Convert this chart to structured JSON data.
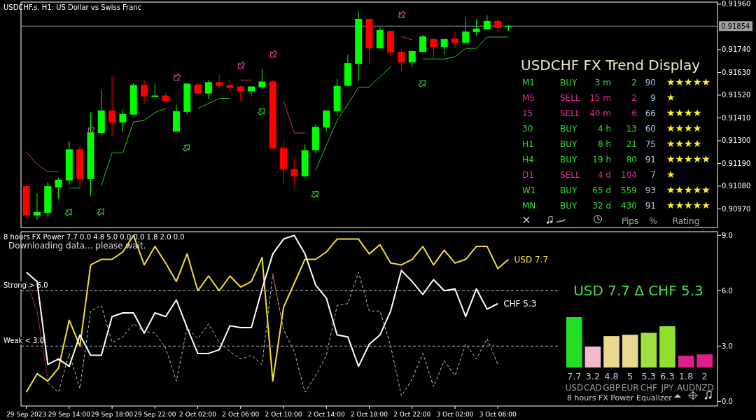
{
  "chart_data": [
    {
      "type": "candlestick",
      "title": "USDCHF.s, H1:  US Dollar vs Swiss Franc",
      "categories": [
        null,
        null,
        null,
        null,
        null,
        null,
        null,
        null,
        null,
        null,
        null,
        null,
        null,
        null,
        null,
        null,
        null,
        null,
        null,
        null,
        null,
        null,
        null,
        null,
        null,
        null,
        null,
        null,
        null,
        null,
        null,
        null,
        null,
        null,
        null,
        null,
        null,
        null,
        null,
        null,
        null,
        null,
        null,
        null,
        null,
        null,
        null,
        null,
        null,
        null,
        null,
        null,
        null,
        null,
        null,
        null,
        null,
        null,
        null,
        null,
        null,
        null,
        null,
        null,
        null
      ],
      "ohlc": [
        [
          0.9108,
          0.91084,
          0.90927,
          0.90938
        ],
        [
          0.90938,
          0.91046,
          0.90917,
          0.90955
        ],
        [
          0.90951,
          0.91098,
          0.90931,
          0.9108
        ],
        [
          0.91074,
          0.91121,
          0.91019,
          0.91111
        ],
        [
          0.91108,
          0.91299,
          0.91087,
          0.91258
        ],
        [
          0.91258,
          0.91275,
          0.91067,
          0.91114
        ],
        [
          0.91114,
          0.91436,
          0.91033,
          0.9134
        ],
        [
          0.91337,
          0.91545,
          0.91334,
          0.91446
        ],
        [
          0.91446,
          0.91617,
          0.9132,
          0.91388
        ],
        [
          0.91388,
          0.9145,
          0.9134,
          0.91429
        ],
        [
          0.91426,
          0.91576,
          0.91426,
          0.91569
        ],
        [
          0.91569,
          0.91593,
          0.91477,
          0.91514
        ],
        [
          0.91511,
          0.91576,
          0.91511,
          0.91518
        ],
        [
          0.91518,
          0.91531,
          0.9149,
          0.9149
        ],
        [
          0.91344,
          0.91473,
          0.91344,
          0.91443
        ],
        [
          0.91439,
          0.91576,
          0.91426,
          0.91576
        ],
        [
          0.91572,
          0.91583,
          0.91521,
          0.91528
        ],
        [
          0.91528,
          0.91593,
          0.91501,
          0.91583
        ],
        [
          0.91583,
          0.91617,
          0.91552,
          0.91565
        ],
        [
          0.91569,
          0.91593,
          0.91531,
          0.91555
        ],
        [
          0.91562,
          0.91569,
          0.9149,
          0.91538
        ],
        [
          0.91538,
          0.91562,
          0.91518,
          0.91562
        ],
        [
          0.91558,
          0.91647,
          0.91558,
          0.91586
        ],
        [
          0.91586,
          0.91593,
          0.91254,
          0.91262
        ],
        [
          0.91265,
          0.91299,
          0.91094,
          0.91162
        ],
        [
          0.91162,
          0.91217,
          0.9108,
          0.91128
        ],
        [
          0.91128,
          0.91282,
          0.91121,
          0.91254
        ],
        [
          0.91254,
          0.91378,
          0.91237,
          0.91367
        ],
        [
          0.91364,
          0.91446,
          0.91344,
          0.91446
        ],
        [
          0.91443,
          0.916,
          0.91419,
          0.91565
        ],
        [
          0.91565,
          0.91716,
          0.91562,
          0.91675
        ],
        [
          0.91671,
          0.91927,
          0.91586,
          0.91889
        ],
        [
          0.91889,
          0.91889,
          0.91671,
          0.91746
        ],
        [
          0.91746,
          0.91849,
          0.91746,
          0.91835
        ],
        [
          0.91831,
          0.91831,
          0.91709,
          0.91726
        ],
        [
          0.91729,
          0.91743,
          0.91637,
          0.91678
        ],
        [
          0.91678,
          0.91736,
          0.91654,
          0.91733
        ],
        [
          0.91729,
          0.91811,
          0.91729,
          0.91804
        ],
        [
          0.91791,
          0.91797,
          0.91698,
          0.91753
        ],
        [
          0.91753,
          0.91791,
          0.91716,
          0.91791
        ],
        [
          0.91794,
          0.91828,
          0.91746,
          0.91773
        ],
        [
          0.91773,
          0.91893,
          0.91773,
          0.91828
        ],
        [
          0.91825,
          0.91886,
          0.91808,
          0.91842
        ],
        [
          0.91838,
          0.91906,
          0.91838,
          0.91879
        ],
        [
          0.91879,
          0.91893,
          0.91831,
          0.91845
        ],
        [
          0.91849,
          0.91859,
          0.91831,
          0.91855
        ],
        null,
        null,
        null,
        null,
        null,
        null,
        null,
        null,
        null,
        null,
        null,
        null,
        null,
        null,
        null,
        null,
        null,
        null,
        null
      ],
      "colors": [
        "#ff0000",
        "#00ff00",
        "#00ff00",
        "#00ff00",
        "#00ff00",
        "#ff0000",
        "#00ff00",
        "#00ff00",
        "#ff0000",
        "#00ff00",
        "#00ff00",
        "#ff0000",
        "#00ff00",
        "#ff0000",
        "#00ff00",
        "#00ff00",
        "#ff0000",
        "#00ff00",
        "#ff0000",
        "#ff0000",
        "#ff0000",
        "#00ff00",
        "#00ff00",
        "#ff0000",
        "#ff0000",
        "#ff0000",
        "#00ff00",
        "#00ff00",
        "#00ff00",
        "#00ff00",
        "#00ff00",
        "#00ff00",
        "#ff0000",
        "#00ff00",
        "#ff0000",
        "#ff0000",
        "#00ff00",
        "#00ff00",
        "#ff0000",
        "#00ff00",
        "#ff0000",
        "#00ff00",
        "#00ff00",
        "#00ff00",
        "#ff0000",
        "#00ff00",
        null,
        null,
        null,
        null,
        null,
        null,
        null,
        null,
        null,
        null,
        null,
        null,
        null,
        null,
        null,
        null,
        null,
        null,
        null
      ],
      "series": [
        {
          "type": "line",
          "color": "#22cc22",
          "values": [
            null,
            null,
            null,
            null,
            0.91071,
            0.91071,
            null,
            0.91084,
            0.91241,
            0.91241,
            0.91391,
            0.91398,
            0.91436,
            0.91456,
            null,
            null,
            0.91456,
            0.9148,
            0.91504,
            0.91504,
            null,
            null,
            null,
            null,
            null,
            null,
            null,
            0.91156,
            0.91278,
            0.91398,
            0.91477,
            0.91558,
            0.91558,
            0.9161,
            0.91657,
            null,
            null,
            0.91695,
            0.91695,
            0.91695,
            0.91705,
            0.91746,
            0.91746,
            0.91801,
            0.91801,
            0.91801,
            null,
            null,
            null,
            null,
            null,
            null,
            null,
            null,
            null,
            null,
            null,
            null,
            null,
            null,
            null,
            null,
            null,
            null,
            null
          ]
        },
        {
          "type": "line",
          "color": "#e0306a",
          "values": [
            0.91245,
            0.91187,
            0.91149,
            0.91149,
            null,
            null,
            null,
            null,
            null,
            null,
            null,
            null,
            null,
            null,
            null,
            null,
            null,
            null,
            null,
            null,
            0.91593,
            0.91593,
            null,
            null,
            0.91494,
            0.91337,
            0.91337,
            null,
            null,
            null,
            null,
            null,
            null,
            null,
            null,
            0.91804,
            0.91787,
            null,
            null,
            null,
            null,
            null,
            null,
            null,
            null,
            null,
            null,
            null,
            null,
            null,
            null,
            null,
            null,
            null,
            null,
            null,
            null,
            null,
            null,
            null,
            null,
            null,
            null,
            null,
            null
          ]
        },
        {
          "type": "scatter",
          "color": "#22cc22",
          "values": [
            null,
            null,
            null,
            null,
            0.90955,
            null,
            null,
            0.90958,
            null,
            null,
            null,
            null,
            null,
            null,
            null,
            0.91268,
            null,
            null,
            null,
            null,
            null,
            null,
            0.91443,
            null,
            null,
            null,
            null,
            0.91043,
            null,
            null,
            null,
            null,
            null,
            null,
            null,
            null,
            null,
            0.91579,
            null,
            null,
            null,
            null,
            null,
            null,
            null,
            null,
            null,
            null,
            null,
            null,
            null,
            null,
            null,
            null,
            null,
            null,
            null,
            null,
            null,
            null,
            null,
            null,
            null,
            null,
            null
          ]
        },
        {
          "type": "scatter",
          "color": "#e040a0",
          "values": [
            null,
            null,
            null,
            null,
            null,
            null,
            0.91347,
            null,
            null,
            null,
            null,
            null,
            null,
            null,
            0.91603,
            null,
            null,
            null,
            null,
            null,
            0.91661,
            null,
            null,
            0.91715,
            null,
            null,
            null,
            null,
            null,
            null,
            null,
            null,
            null,
            null,
            null,
            0.91906,
            null,
            null,
            null,
            null,
            null,
            null,
            null,
            null,
            null,
            null,
            null,
            null,
            null,
            null,
            null,
            null,
            null,
            null,
            null,
            null,
            null,
            null,
            null,
            null,
            null,
            null,
            null,
            null,
            null
          ]
        }
      ],
      "ylim": [
        0.9088,
        0.9197
      ],
      "yticks": [
        {
          "value": 0.9097,
          "label": "0.90970"
        },
        {
          "value": 0.9108,
          "label": "0.91080"
        },
        {
          "value": 0.9119,
          "label": "0.91190"
        },
        {
          "value": 0.913,
          "label": "0.91300"
        },
        {
          "value": 0.9141,
          "label": "0.91410"
        },
        {
          "value": 0.9152,
          "label": "0.91520"
        },
        {
          "value": 0.9163,
          "label": "0.91630"
        },
        {
          "value": 0.9174,
          "label": "0.91740"
        },
        {
          "value": 0.9196,
          "label": "0.91960"
        }
      ],
      "ref_lines": [
        {
          "axis": "y",
          "value": 0.91854,
          "label": "0.91854",
          "color": "#a0a0a0"
        }
      ]
    },
    {
      "type": "line",
      "title": "8 hours FX Power 7.7 0.0 4.8 5.0 0.0 0.0 1.8 2.0 0.0",
      "annotations": [
        "Downloading data... please wait."
      ],
      "categories": [
        "29 Sep 2023",
        null,
        null,
        null,
        "29 Sep 14:00",
        null,
        null,
        null,
        "29 Sep 18:00",
        null,
        null,
        null,
        "29 Sep 22:00",
        null,
        null,
        null,
        "2 Oct 02:00",
        null,
        null,
        null,
        "2 Oct 06:00",
        null,
        null,
        null,
        "2 Oct 10:00",
        null,
        null,
        null,
        "2 Oct 14:00",
        null,
        null,
        null,
        "2 Oct 18:00",
        null,
        null,
        null,
        "2 Oct 22:00",
        null,
        null,
        null,
        "3 Oct 02:00",
        null,
        null,
        null,
        "3 Oct 06:00",
        null,
        null,
        null,
        null,
        null,
        null,
        null,
        null,
        null,
        null,
        null,
        null,
        null,
        null,
        null,
        null,
        null,
        null,
        null,
        null
      ],
      "series": [
        {
          "name": "USD 7.7",
          "color": "#f0e030",
          "values": [
            0.5,
            1.5,
            1.1,
            1.8,
            4.4,
            3.0,
            7.4,
            7.7,
            7.7,
            8.1,
            9.0,
            7.4,
            8.4,
            7.5,
            6.5,
            8.0,
            6.0,
            6.8,
            6.0,
            6.8,
            6.2,
            6.5,
            7.8,
            1.1,
            5.1,
            6.4,
            7.7,
            7.7,
            8.1,
            8.8,
            8.8,
            8.8,
            8.0,
            8.5,
            7.5,
            7.4,
            7.7,
            8.4,
            7.4,
            8.2,
            7.5,
            7.7,
            8.4,
            8.4,
            7.2,
            7.7,
            null,
            null,
            null,
            null,
            null,
            null,
            null,
            null,
            null,
            null,
            null,
            null,
            null,
            null,
            null,
            null,
            null,
            null,
            null
          ]
        },
        {
          "name": "CHF 5.3",
          "color": "#ffffff",
          "values": [
            7.0,
            6.5,
            2.0,
            2.3,
            1.9,
            3.6,
            2.5,
            2.5,
            4.6,
            4.8,
            4.8,
            3.7,
            4.8,
            4.6,
            5.5,
            4.0,
            2.6,
            2.6,
            2.8,
            4.1,
            4.0,
            4.0,
            6.1,
            8.0,
            8.8,
            9.0,
            8.0,
            6.3,
            5.6,
            3.6,
            3.5,
            1.9,
            3.1,
            3.6,
            4.9,
            7.1,
            6.5,
            5.8,
            6.6,
            6.0,
            6.1,
            4.6,
            6.1,
            5.0,
            5.3,
            null,
            null,
            null,
            null,
            null,
            null,
            null,
            null,
            null,
            null,
            null,
            null,
            null,
            null,
            null,
            null,
            null,
            null,
            null,
            null
          ]
        },
        {
          "color": "#b8d890",
          "line_style": "dashed",
          "values": [
            null,
            null,
            1.0,
            0.5,
            2.6,
            0.7,
            4.9,
            5.2,
            3.2,
            3.5,
            4.2,
            3.8,
            3.7,
            2.9,
            1.1,
            4.0,
            3.4,
            4.2,
            3.2,
            2.7,
            2.3,
            2.5,
            2.0,
            6.9,
            3.9,
            2.7,
            0.5,
            1.4,
            2.5,
            5.2,
            5.3,
            7.0,
            4.9,
            4.9,
            3.0,
            0.3,
            1.2,
            2.6,
            0.8,
            2.2,
            1.4,
            3.1,
            2.3,
            3.4,
            2.0,
            null,
            null,
            null,
            null,
            null,
            null,
            null,
            null,
            null,
            null,
            null,
            null,
            null,
            null,
            null,
            null,
            null,
            null,
            null,
            null
          ]
        },
        {
          "color": "#e0507a",
          "line_style": "dotted",
          "values": [
            6.5,
            4.9,
            1.2,
            null,
            null,
            null,
            null,
            null,
            null,
            null,
            null,
            null,
            null,
            null,
            null,
            null,
            null,
            null,
            null,
            null,
            null,
            null,
            null,
            6.9,
            3.9,
            null,
            null,
            null,
            null,
            null,
            null,
            null,
            null,
            null,
            null,
            null,
            null,
            null,
            null,
            null,
            null,
            null,
            null,
            null,
            null,
            null,
            null,
            null,
            null,
            null,
            null,
            null,
            null,
            null,
            null,
            null,
            null,
            null,
            null,
            null,
            null,
            null,
            null,
            null,
            null
          ]
        }
      ],
      "ylim": [
        -0.25,
        9.2
      ],
      "yticks": [
        {
          "value": 0,
          "label": "0.0"
        },
        {
          "value": 3,
          "label": "3.0"
        },
        {
          "value": 6,
          "label": "6.0"
        },
        {
          "value": 9,
          "label": "9.0"
        }
      ],
      "ref_lines": [
        {
          "axis": "y",
          "value": 6,
          "label": "Strong > 6.0",
          "color": "#c8c8c8",
          "line_style": "dashed"
        },
        {
          "axis": "y",
          "value": 3,
          "label": "Weak < 3.0",
          "color": "#c8c8c8",
          "line_style": "dashed"
        }
      ]
    },
    {
      "type": "other",
      "title": "USDCHF FX Trend Display",
      "y_categories": [
        "M1",
        "M5",
        "15",
        "30",
        "H1",
        "H4",
        "D1",
        "W1",
        "MN"
      ],
      "cell_labels": [
        [
          "BUY",
          "3 m",
          "2",
          "90",
          "★★★★★"
        ],
        [
          "SELL",
          "15 m",
          "2",
          "9",
          "★"
        ],
        [
          "SELL",
          "40 m",
          "6",
          "66",
          "★★★★"
        ],
        [
          "BUY",
          "4 h",
          "13",
          "60",
          "★★★★"
        ],
        [
          "BUY",
          "8 h",
          "21",
          "75",
          "★★★★"
        ],
        [
          "BUY",
          "19 h",
          "80",
          "91",
          "★★★★★"
        ],
        [
          "SELL",
          "4 d",
          "104",
          "7",
          "★"
        ],
        [
          "BUY",
          "65 d",
          "559",
          "93",
          "★★★★★"
        ],
        [
          "BUY",
          "32 d",
          "430",
          "91",
          "★★★★★"
        ]
      ],
      "categories": [
        null,
        null,
        "Pips",
        "%",
        "Rating"
      ],
      "colors": [
        "#33dd33",
        "#e0309a",
        "#e0309a",
        "#33dd33",
        "#33dd33",
        "#33dd33",
        "#e0309a",
        "#33dd33",
        "#33dd33"
      ]
    },
    {
      "type": "bar",
      "title": "USD 7.7 ∆ CHF 5.3",
      "categories": [
        "USD",
        "CAD",
        "GBP",
        "EUR",
        "CHF",
        "JPY",
        "AUD",
        "NZD"
      ],
      "values": [
        7.7,
        3.2,
        4.8,
        5.0,
        5.3,
        6.3,
        1.8,
        2.0
      ],
      "colors": [
        "#22dd22",
        "#f4b8c8",
        "#e8d890",
        "#e8d890",
        "#a0e040",
        "#90e030",
        "#e0208a",
        "#e0208a"
      ],
      "data_labels": true,
      "xlabel": "8 hours FX Power Equalizer"
    }
  ]
}
